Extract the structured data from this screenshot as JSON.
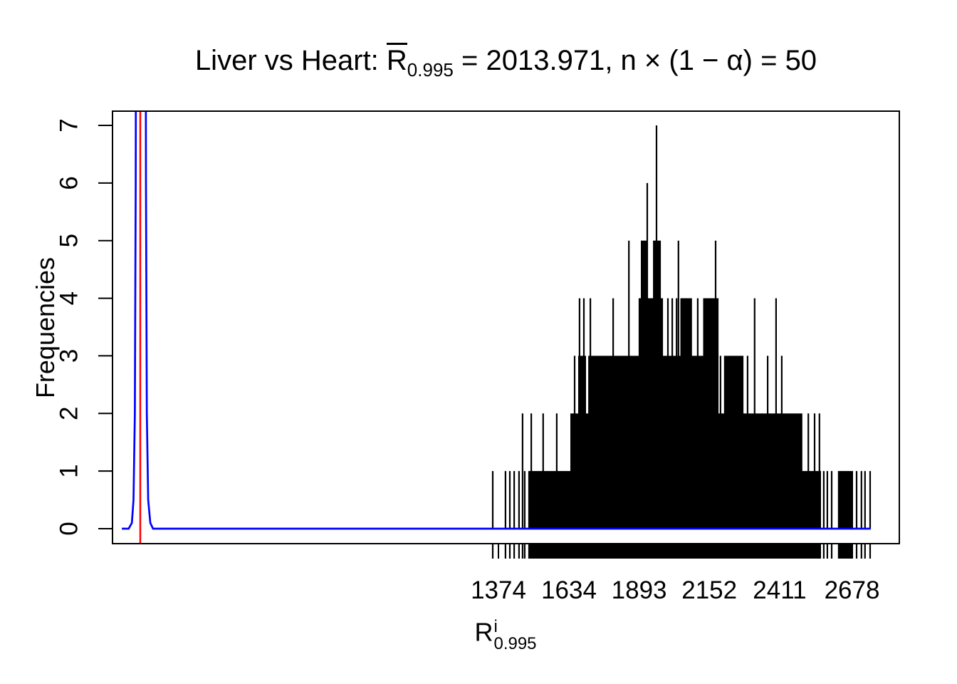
{
  "chart_data": {
    "type": "bar",
    "subtype": "spike-histogram-with-density",
    "title": "Liver vs Heart: R̅0.995 = 2013.971, n × (1 − α) = 50",
    "xlabel": "R i 0.995",
    "ylabel": "Frequencies",
    "x_ticks": [
      1374,
      1634,
      1893,
      2152,
      2411,
      2678
    ],
    "y_ticks": [
      0,
      1,
      2,
      3,
      4,
      5,
      6,
      7
    ],
    "xlim": [
      -50,
      2853
    ],
    "ylim": [
      -0.26,
      7.25
    ],
    "grid": false,
    "legend_position": "none",
    "colors": {
      "spikes": "#000000",
      "density": "#0000ff",
      "refline": "#ff0000",
      "axis": "#000000"
    },
    "refline_x": 53,
    "rug": true,
    "bands": [
      [
        1487,
        2561,
        1
      ],
      [
        2629,
        2679,
        1
      ],
      [
        1642,
        2492,
        2
      ],
      [
        1671,
        1694,
        3
      ],
      [
        1708,
        2170,
        3
      ],
      [
        2209,
        2275,
        3
      ],
      [
        1894,
        1978,
        4
      ],
      [
        2048,
        2085,
        4
      ],
      [
        2132,
        2183,
        4
      ],
      [
        1902,
        1918,
        5
      ],
      [
        1947,
        1970,
        5
      ]
    ],
    "spikes": {
      "1": [
        1353,
        1400,
        1416,
        1432,
        1450,
        1471,
        2574,
        2587,
        2603,
        2695,
        2713,
        2726,
        2745
      ],
      "2": [
        1463,
        1495,
        1539,
        1589,
        2517,
        2540,
        2558
      ],
      "3": [
        1655,
        2193,
        2293,
        2367,
        2419
      ],
      "4": [
        1673,
        1689,
        1713,
        1797,
        1999,
        2015,
        2031,
        2065,
        2109,
        2319,
        2398
      ],
      "5": [
        1855,
        2038,
        2175
      ],
      "6": [
        1923
      ],
      "7": [
        1957
      ]
    },
    "density_curve": [
      [
        -15,
        0
      ],
      [
        10,
        0
      ],
      [
        22,
        0.1
      ],
      [
        28,
        0.5
      ],
      [
        33,
        2
      ],
      [
        36,
        6
      ],
      [
        38,
        12
      ],
      [
        42,
        25
      ],
      [
        48,
        34
      ],
      [
        55,
        36
      ],
      [
        62,
        34
      ],
      [
        68,
        25
      ],
      [
        72,
        12
      ],
      [
        74,
        6
      ],
      [
        77,
        2
      ],
      [
        82,
        0.5
      ],
      [
        90,
        0.1
      ],
      [
        100,
        0
      ],
      [
        2747,
        0
      ]
    ]
  },
  "title_parts": {
    "prefix": "Liver vs Heart: ",
    "r": "R",
    "r_sub": "0.995",
    "eq": " = ",
    "mean": "2013.971",
    "mid": ", n × (1 − α) = ",
    "n": "50"
  },
  "xlabel_parts": {
    "base": "R",
    "sup": "i",
    "sub": "0.995"
  }
}
